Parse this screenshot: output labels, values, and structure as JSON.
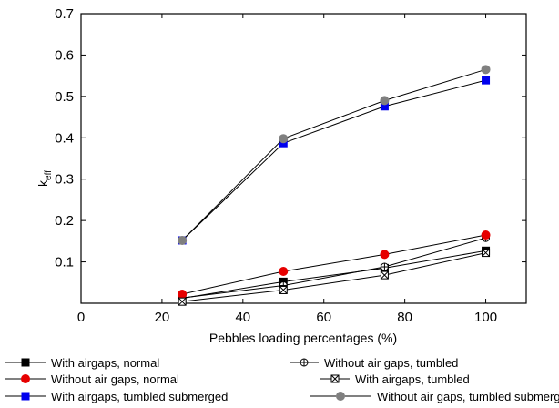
{
  "chart_data": {
    "type": "line",
    "xlabel": "Pebbles loading percentages (%)",
    "ylabel_main": "k",
    "ylabel_sub": "eff",
    "xlim": [
      0,
      110
    ],
    "ylim": [
      0,
      0.7
    ],
    "xticks": [
      0,
      20,
      40,
      60,
      80,
      100
    ],
    "xtick_labels": [
      "0",
      "20",
      "40",
      "60",
      "80",
      "100"
    ],
    "yticks": [
      0.1,
      0.2,
      0.3,
      0.4,
      0.5,
      0.6,
      0.7
    ],
    "ytick_labels": [
      "0.1",
      "0.2",
      "0.3",
      "0.4",
      "0.5",
      "0.6",
      "0.7"
    ],
    "x": [
      25,
      50,
      75,
      100
    ],
    "legend_position": "bottom",
    "series": [
      {
        "name": "With airgaps, normal",
        "values": [
          0.012,
          0.052,
          0.085,
          0.127
        ],
        "color": "#000000",
        "marker": "filled-square"
      },
      {
        "name": "Without air gaps, tumbled",
        "values": [
          0.013,
          0.043,
          0.088,
          0.158
        ],
        "color": "#000000",
        "marker": "circle-plus"
      },
      {
        "name": "Without air gaps, normal",
        "values": [
          0.022,
          0.077,
          0.118,
          0.165
        ],
        "color": "#e60000",
        "marker": "filled-circle"
      },
      {
        "name": "With airgaps, tumbled",
        "values": [
          0.004,
          0.032,
          0.068,
          0.122
        ],
        "color": "#000000",
        "marker": "square-x"
      },
      {
        "name": "With airgaps, tumbled submerged",
        "values": [
          0.152,
          0.387,
          0.476,
          0.539
        ],
        "color": "#0000ee",
        "marker": "filled-square"
      },
      {
        "name": "Without air gaps, tumbled submerged",
        "values": [
          0.152,
          0.398,
          0.49,
          0.565
        ],
        "color": "#808080",
        "marker": "filled-circle"
      }
    ]
  }
}
